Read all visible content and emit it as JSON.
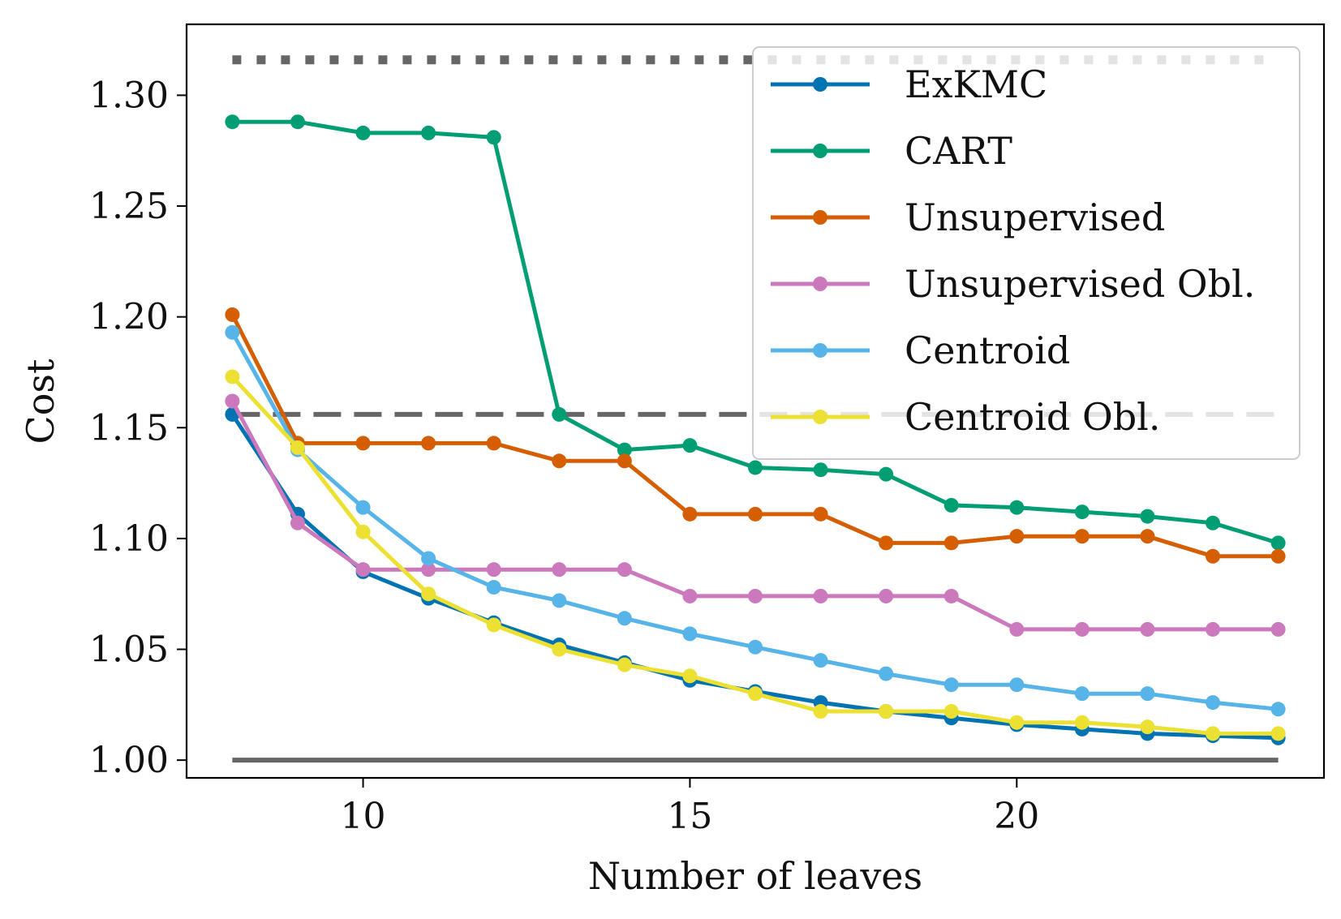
{
  "chart_data": {
    "type": "line",
    "xlabel": "Number of leaves",
    "ylabel": "Cost",
    "xlim": [
      7.3,
      24.7
    ],
    "ylim": [
      0.992,
      1.332
    ],
    "xticks": [
      10,
      15,
      20
    ],
    "yticks": [
      1.0,
      1.05,
      1.1,
      1.15,
      1.2,
      1.25,
      1.3
    ],
    "ytick_labels": [
      "1.00",
      "1.05",
      "1.10",
      "1.15",
      "1.20",
      "1.25",
      "1.30"
    ],
    "grid": false,
    "legend_position": "top-right",
    "x": [
      8,
      9,
      10,
      11,
      12,
      13,
      14,
      15,
      16,
      17,
      18,
      19,
      20,
      21,
      22,
      23,
      24
    ],
    "reference_lines": [
      {
        "y": 1.316,
        "style": "dotted",
        "color": "#666666"
      },
      {
        "y": 1.156,
        "style": "dashed",
        "color": "#666666"
      },
      {
        "y": 1.0,
        "style": "solid",
        "color": "#666666"
      }
    ],
    "series": [
      {
        "name": "ExKMC",
        "color": "#0173b2",
        "values": [
          1.156,
          1.111,
          1.085,
          1.073,
          1.062,
          1.052,
          1.044,
          1.036,
          1.031,
          1.026,
          1.022,
          1.019,
          1.016,
          1.014,
          1.012,
          1.011,
          1.01
        ]
      },
      {
        "name": "CART",
        "color": "#029e73",
        "values": [
          1.288,
          1.288,
          1.283,
          1.283,
          1.281,
          1.156,
          1.14,
          1.142,
          1.132,
          1.131,
          1.129,
          1.115,
          1.114,
          1.112,
          1.11,
          1.107,
          1.098
        ]
      },
      {
        "name": "Unsupervised",
        "color": "#d55e00",
        "values": [
          1.201,
          1.143,
          1.143,
          1.143,
          1.143,
          1.135,
          1.135,
          1.111,
          1.111,
          1.111,
          1.098,
          1.098,
          1.101,
          1.101,
          1.101,
          1.092,
          1.092
        ]
      },
      {
        "name": "Unsupervised Obl.",
        "color": "#cc78bc",
        "values": [
          1.162,
          1.107,
          1.086,
          1.086,
          1.086,
          1.086,
          1.086,
          1.074,
          1.074,
          1.074,
          1.074,
          1.074,
          1.059,
          1.059,
          1.059,
          1.059,
          1.059
        ]
      },
      {
        "name": "Centroid",
        "color": "#56b4e9",
        "values": [
          1.193,
          1.14,
          1.114,
          1.091,
          1.078,
          1.072,
          1.064,
          1.057,
          1.051,
          1.045,
          1.039,
          1.034,
          1.034,
          1.03,
          1.03,
          1.026,
          1.023
        ]
      },
      {
        "name": "Centroid Obl.",
        "color": "#ece133",
        "values": [
          1.173,
          1.141,
          1.103,
          1.075,
          1.061,
          1.05,
          1.043,
          1.038,
          1.03,
          1.022,
          1.022,
          1.022,
          1.017,
          1.017,
          1.015,
          1.012,
          1.012
        ]
      }
    ]
  }
}
